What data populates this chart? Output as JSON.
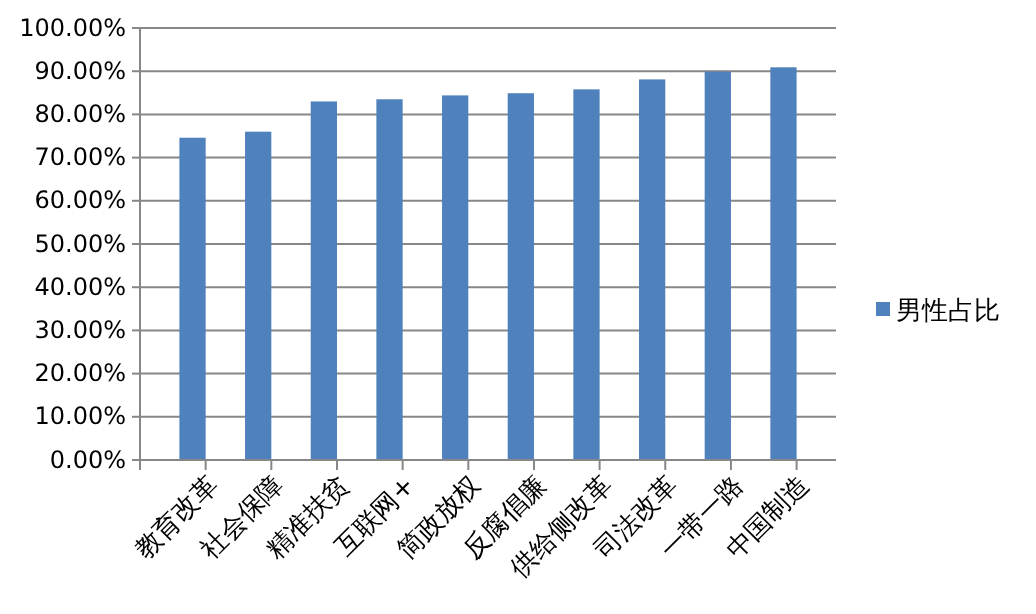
{
  "chart_data": {
    "type": "bar",
    "categories": [
      "教育改革",
      "社会保障",
      "精准扶贫",
      "互联网+",
      "简政放权",
      "反腐倡廉",
      "供给侧改革",
      "司法改革",
      "一带一路",
      "中国制造"
    ],
    "series": [
      {
        "name": "男性占比",
        "color": "#4f81bd",
        "values": [
          74.6,
          76.0,
          83.0,
          83.5,
          84.4,
          84.9,
          85.8,
          88.1,
          89.9,
          90.9
        ]
      }
    ],
    "ylim": [
      0,
      100
    ],
    "yticks": [
      {
        "value": 0,
        "label": "0.00%"
      },
      {
        "value": 10,
        "label": "10.00%"
      },
      {
        "value": 20,
        "label": "20.00%"
      },
      {
        "value": 30,
        "label": "30.00%"
      },
      {
        "value": 40,
        "label": "40.00%"
      },
      {
        "value": 50,
        "label": "50.00%"
      },
      {
        "value": 60,
        "label": "60.00%"
      },
      {
        "value": 70,
        "label": "70.00%"
      },
      {
        "value": 80,
        "label": "80.00%"
      },
      {
        "value": 90,
        "label": "90.00%"
      },
      {
        "value": 100,
        "label": "100.00%"
      }
    ],
    "grid": "y",
    "legend": "right"
  }
}
